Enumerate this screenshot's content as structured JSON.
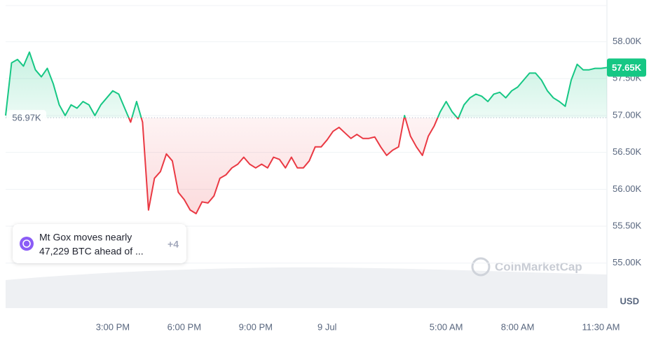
{
  "chart_data": {
    "type": "line",
    "values": [
      57000,
      57715,
      57760,
      57670,
      57860,
      57620,
      57525,
      57640,
      57430,
      57145,
      57000,
      57145,
      57100,
      57190,
      57145,
      57000,
      57145,
      57240,
      57335,
      57290,
      57100,
      56910,
      57190,
      56910,
      55720,
      56150,
      56240,
      56480,
      56385,
      55960,
      55860,
      55720,
      55670,
      55830,
      55815,
      55910,
      56150,
      56195,
      56290,
      56340,
      56435,
      56340,
      56290,
      56340,
      56290,
      56435,
      56405,
      56290,
      56435,
      56290,
      56290,
      56385,
      56575,
      56575,
      56670,
      56785,
      56840,
      56765,
      56690,
      56745,
      56690,
      56690,
      56710,
      56575,
      56460,
      56530,
      56575,
      57000,
      56720,
      56575,
      56460,
      56720,
      56860,
      57050,
      57190,
      57050,
      56955,
      57145,
      57240,
      57290,
      57260,
      57190,
      57290,
      57315,
      57240,
      57335,
      57385,
      57480,
      57575,
      57575,
      57480,
      57335,
      57240,
      57190,
      57125,
      57480,
      57695,
      57620,
      57620,
      57640,
      57640,
      57650
    ],
    "xlim": [
      0,
      101
    ],
    "xticks": [
      {
        "value": 18,
        "label": "3:00 PM"
      },
      {
        "value": 30,
        "label": "6:00 PM"
      },
      {
        "value": 42,
        "label": "9:00 PM"
      },
      {
        "value": 54,
        "label": "9 Jul"
      },
      {
        "value": 74,
        "label": "5:00 AM"
      },
      {
        "value": 86,
        "label": "8:00 AM"
      },
      {
        "value": 100,
        "label": "11:30 AM"
      }
    ],
    "ylim": [
      54390,
      58490
    ],
    "yticks": [
      {
        "value": 55000,
        "label": "55.00K"
      },
      {
        "value": 55500,
        "label": "55.50K"
      },
      {
        "value": 56000,
        "label": "56.00K"
      },
      {
        "value": 56500,
        "label": "56.50K"
      },
      {
        "value": 57000,
        "label": "57.00K"
      },
      {
        "value": 57500,
        "label": "57.50K"
      },
      {
        "value": 58000,
        "label": "58.00K"
      }
    ],
    "grid": true,
    "baseline": {
      "value": 56970,
      "label": "56.97K"
    },
    "last_price": {
      "value": 57650,
      "label": "57.65K"
    },
    "up_color": "#16c784",
    "down_color": "#ea3943",
    "y_axis_label": "USD",
    "watermark": "CoinMarketCap",
    "annotation": {
      "lines": [
        "Mt Gox moves nearly",
        "47,229 BTC ahead of ..."
      ],
      "count": "+4"
    }
  }
}
